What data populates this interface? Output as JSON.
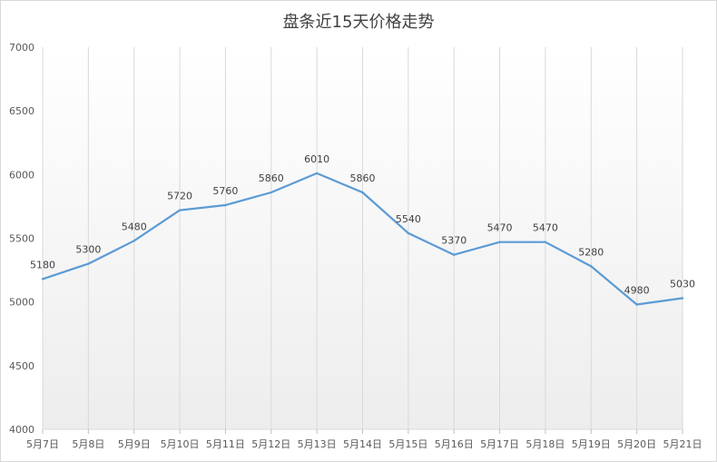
{
  "chart_data": {
    "type": "line",
    "title": "盘条近15天价格走势",
    "xlabel": "",
    "ylabel": "",
    "categories": [
      "5月7日",
      "5月8日",
      "5月9日",
      "5月10日",
      "5月11日",
      "5月12日",
      "5月13日",
      "5月14日",
      "5月15日",
      "5月16日",
      "5月17日",
      "5月18日",
      "5月19日",
      "5月20日",
      "5月21日"
    ],
    "series": [
      {
        "values": [
          5180,
          5300,
          5480,
          5720,
          5760,
          5860,
          6010,
          5860,
          5540,
          5370,
          5470,
          5470,
          5280,
          4980,
          5030
        ]
      }
    ],
    "ylim": [
      4000,
      7000
    ],
    "yticks": [
      4000,
      4500,
      5000,
      5500,
      6000,
      6500,
      7000
    ],
    "grid": "vertical",
    "data_labels": true,
    "legend": "none",
    "line_color": "#5b9bd5",
    "area_gradient": [
      "#ffffff",
      "#ededed"
    ]
  }
}
